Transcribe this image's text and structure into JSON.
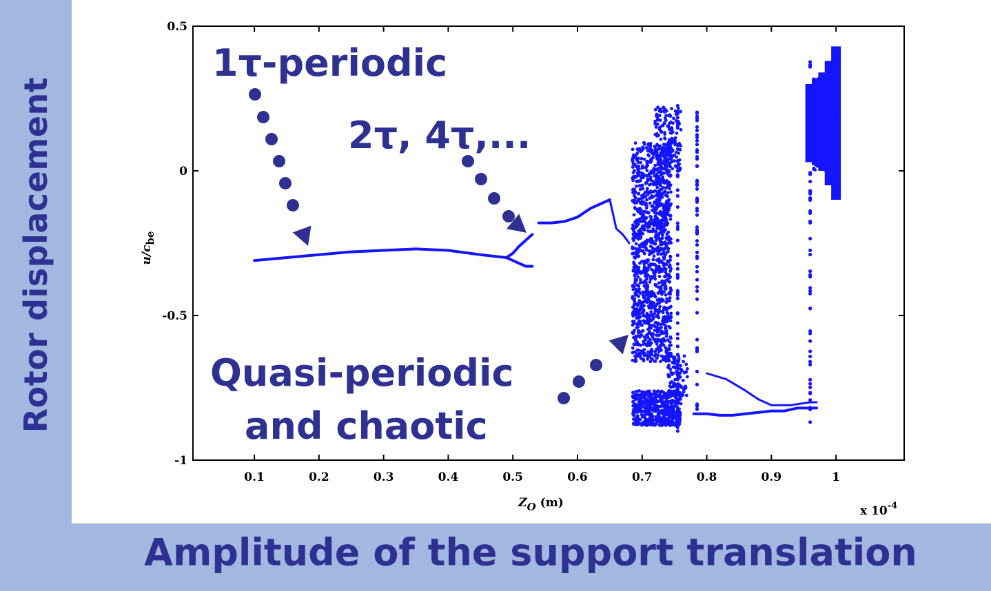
{
  "slide": {
    "left_title": "Rotor displacement",
    "bottom_title": "Amplitude of the support translation"
  },
  "annotations": {
    "period1": "1τ-periodic",
    "period2": "2τ, 4τ,...",
    "quasi_line1": "Quasi-periodic",
    "quasi_line2": "and chaotic"
  },
  "colors": {
    "data": "#1414ff",
    "annotation": "#2e3192",
    "band": "#a3b8e0"
  },
  "chart_data": {
    "type": "scatter",
    "title": "",
    "xlabel": "Z_O (m)",
    "xlabel_main": "Z",
    "xlabel_sub": "O",
    "xlabel_unit": " (m)",
    "ylabel": "u/c_be",
    "ylabel_main": "u/c",
    "ylabel_sub": "be",
    "x_multiplier": "x 10",
    "x_multiplier_exp": "-4",
    "xlim": [
      0,
      1.1
    ],
    "ylim": [
      -1,
      0.5
    ],
    "xticks": [
      0.1,
      0.2,
      0.3,
      0.4,
      0.5,
      0.6,
      0.7,
      0.8,
      0.9,
      1
    ],
    "xtick_labels": [
      "0.1",
      "0.2",
      "0.3",
      "0.4",
      "0.5",
      "0.6",
      "0.7",
      "0.8",
      "0.9",
      "1"
    ],
    "yticks": [
      0.5,
      0,
      -0.5,
      -1
    ],
    "ytick_labels": [
      "0.5",
      "0",
      "-0.5",
      "-1"
    ],
    "regions": [
      {
        "name": "1τ-periodic branch",
        "x": [
          0.1,
          0.15,
          0.2,
          0.25,
          0.3,
          0.35,
          0.4,
          0.45,
          0.49
        ],
        "y": [
          -0.31,
          -0.3,
          -0.29,
          -0.28,
          -0.275,
          -0.27,
          -0.275,
          -0.29,
          -0.3
        ]
      },
      {
        "name": "period-doubling upper",
        "x": [
          0.49,
          0.5,
          0.51,
          0.52,
          0.53
        ],
        "y": [
          -0.3,
          -0.285,
          -0.26,
          -0.24,
          -0.22
        ]
      },
      {
        "name": "period-doubling lower",
        "x": [
          0.49,
          0.5,
          0.51,
          0.52,
          0.53
        ],
        "y": [
          -0.3,
          -0.31,
          -0.32,
          -0.33,
          -0.33
        ]
      },
      {
        "name": "post-jump branch",
        "x": [
          0.54,
          0.56,
          0.58,
          0.6,
          0.62,
          0.64,
          0.65
        ],
        "y": [
          -0.18,
          -0.18,
          -0.175,
          -0.16,
          -0.13,
          -0.11,
          -0.1
        ]
      },
      {
        "name": "lower branch",
        "x": [
          0.78,
          0.8,
          0.82,
          0.84,
          0.86,
          0.88,
          0.9,
          0.92,
          0.94,
          0.96,
          0.97
        ],
        "y": [
          -0.84,
          -0.84,
          -0.845,
          -0.845,
          -0.84,
          -0.835,
          -0.83,
          -0.83,
          -0.82,
          -0.82,
          -0.82
        ]
      },
      {
        "name": "upper band",
        "x": [
          0.96,
          0.97,
          0.98,
          0.99,
          1.0
        ],
        "y_min": [
          0.03,
          0.02,
          0.0,
          -0.05,
          -0.1
        ],
        "y_max": [
          0.3,
          0.32,
          0.34,
          0.38,
          0.43
        ]
      }
    ]
  }
}
